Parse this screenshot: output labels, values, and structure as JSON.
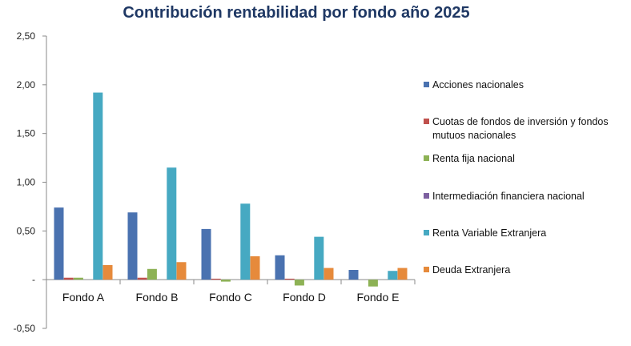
{
  "chart_data": {
    "type": "bar",
    "title": "Contribución rentabilidad por fondo año 2025",
    "xlabel": "",
    "ylabel": "",
    "categories": [
      "Fondo A",
      "Fondo B",
      "Fondo C",
      "Fondo D",
      "Fondo E"
    ],
    "ylim": [
      -0.5,
      2.5
    ],
    "yticks": [
      {
        "value": 2.5,
        "label": "2,50"
      },
      {
        "value": 2.0,
        "label": "2,00"
      },
      {
        "value": 1.5,
        "label": "1,50"
      },
      {
        "value": 1.0,
        "label": "1,00"
      },
      {
        "value": 0.5,
        "label": "0,50"
      },
      {
        "value": 0.0,
        "label": "-"
      },
      {
        "value": -0.5,
        "label": "-0,50"
      }
    ],
    "grid": false,
    "legend_position": "right",
    "series": [
      {
        "name": "Acciones nacionales",
        "color": "#4a72b0",
        "values": [
          0.74,
          0.69,
          0.52,
          0.25,
          0.1
        ]
      },
      {
        "name": "Cuotas de fondos de inversión y fondos mutuos nacionales",
        "color": "#c0504d",
        "values": [
          0.02,
          0.02,
          0.01,
          0.01,
          0.0
        ]
      },
      {
        "name": "Renta fija nacional",
        "color": "#8db255",
        "values": [
          0.02,
          0.11,
          -0.02,
          -0.06,
          -0.07
        ]
      },
      {
        "name": "Intermediación financiera nacional",
        "color": "#7d60a0",
        "values": [
          0.0,
          0.0,
          0.0,
          0.0,
          0.0
        ]
      },
      {
        "name": "Renta Variable Extranjera",
        "color": "#46a9c2",
        "values": [
          1.92,
          1.15,
          0.78,
          0.44,
          0.09
        ]
      },
      {
        "name": "Deuda Extranjera",
        "color": "#e68a3b",
        "values": [
          0.15,
          0.18,
          0.24,
          0.12,
          0.12
        ]
      }
    ]
  }
}
